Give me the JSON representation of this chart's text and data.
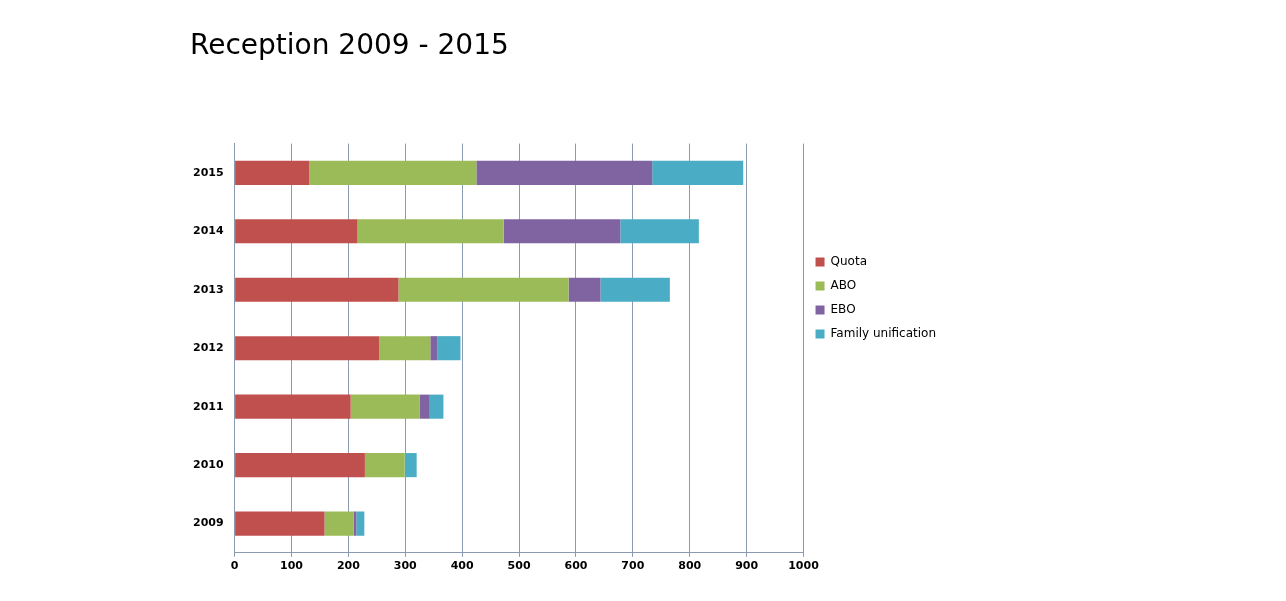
{
  "chart_data": {
    "type": "bar",
    "orientation": "horizontal",
    "stacked": true,
    "title": "Reception 2009 - 2015",
    "categories": [
      "2015",
      "2014",
      "2013",
      "2012",
      "2011",
      "2010",
      "2009"
    ],
    "series": [
      {
        "name": "Quota",
        "color": "#c0504d",
        "values": [
          131,
          216,
          288,
          254,
          204,
          229,
          158
        ]
      },
      {
        "name": "ABO",
        "color": "#9bbb59",
        "values": [
          294,
          257,
          299,
          90,
          121,
          70,
          51
        ]
      },
      {
        "name": "EBO",
        "color": "#8064a2",
        "values": [
          309,
          205,
          56,
          12,
          18,
          0,
          5
        ]
      },
      {
        "name": "Family unification",
        "color": "#4bacc6",
        "values": [
          160,
          138,
          122,
          41,
          24,
          21,
          14
        ]
      }
    ],
    "xlim": [
      0,
      1000
    ],
    "xticks": [
      0,
      100,
      200,
      300,
      400,
      500,
      600,
      700,
      800,
      900,
      1000
    ],
    "grid": "x",
    "legend": "right"
  }
}
